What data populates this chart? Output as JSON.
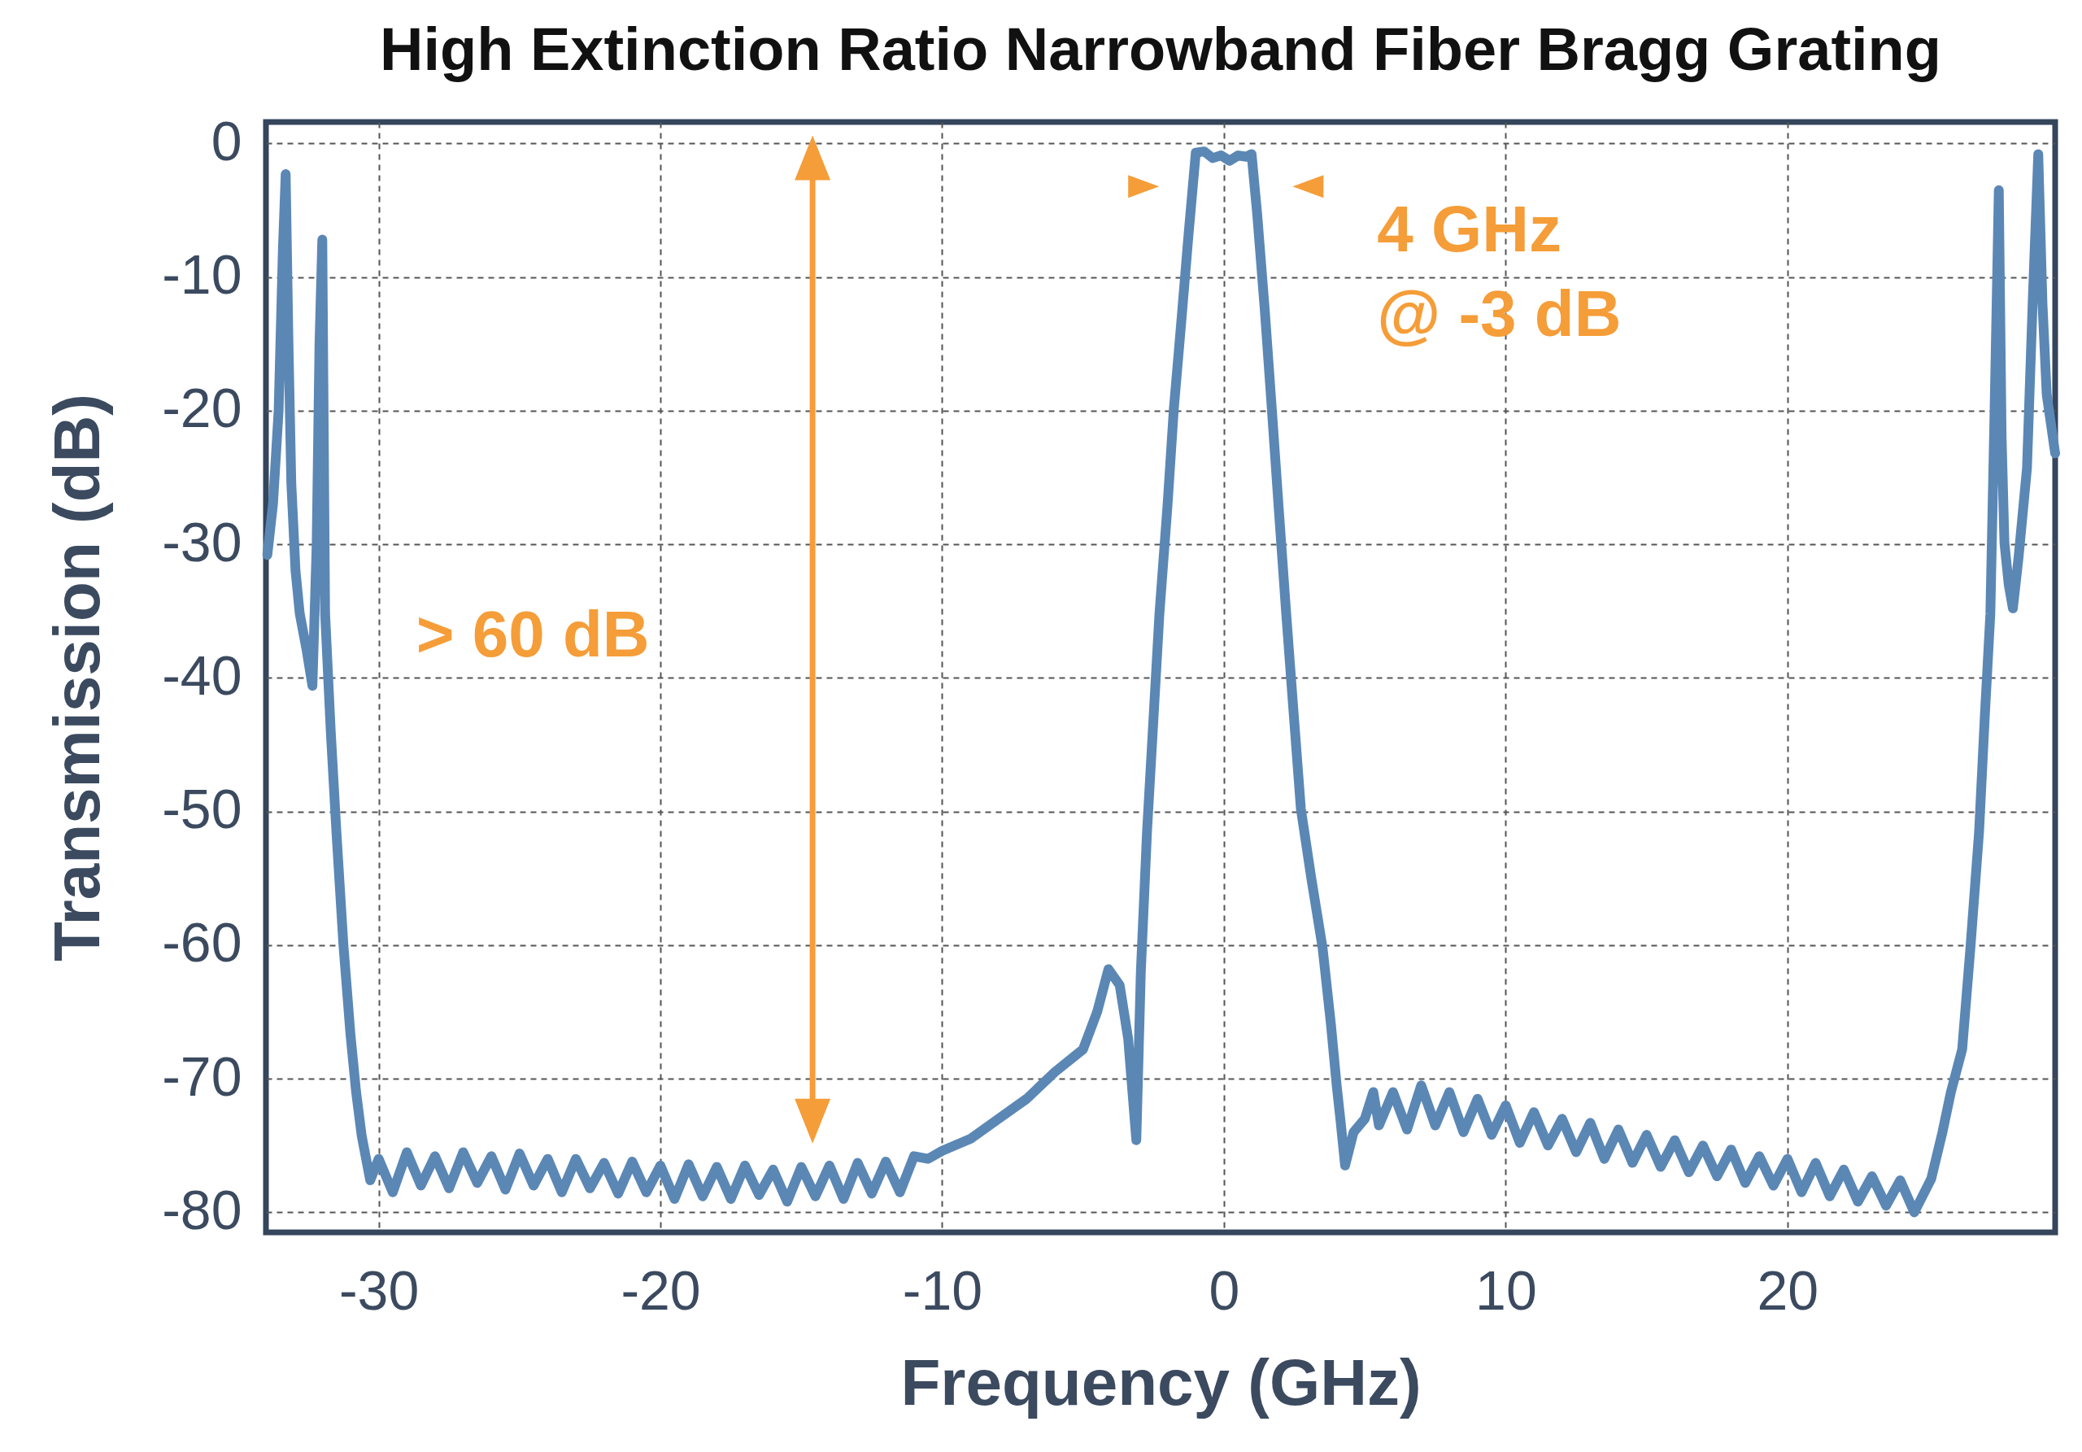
{
  "chart_data": {
    "type": "line",
    "title": "High Extinction Ratio Narrowband Fiber Bragg Grating",
    "xlabel": "Frequency (GHz)",
    "ylabel": "Transmission (dB)",
    "xlim": [
      -34,
      29.5
    ],
    "ylim": [
      -81.5,
      1.6
    ],
    "xticks": [
      -30,
      -20,
      -10,
      0,
      10,
      20
    ],
    "yticks": [
      0,
      -10,
      -20,
      -30,
      -40,
      -50,
      -60,
      -70,
      -80
    ],
    "grid": true,
    "legend": false,
    "marker": "none",
    "line_style": "solid",
    "annotations": [
      "> 60 dB",
      "4 GHz\n@ -3 dB"
    ],
    "series": [
      {
        "color": "#5b87b5",
        "x": [
          -33.95,
          -33.75,
          -33.55,
          -33.4,
          -33.3,
          -33.2,
          -33.1,
          -32.95,
          -32.8,
          -32.55,
          -32.35,
          -32.2,
          -32.1,
          -32.0,
          -31.9,
          -31.7,
          -31.5,
          -31.25,
          -31.0,
          -30.8,
          -30.6,
          -30.3,
          -30,
          -29.5,
          -29,
          -28.5,
          -28,
          -27.5,
          -27,
          -26.5,
          -26,
          -25.5,
          -25,
          -24.5,
          -24,
          -23.5,
          -23,
          -22.5,
          -22,
          -21.5,
          -21,
          -20.5,
          -20,
          -19.5,
          -19,
          -18.5,
          -18,
          -17.5,
          -17,
          -16.5,
          -16,
          -15.5,
          -15,
          -14.5,
          -14,
          -13.5,
          -13,
          -12.5,
          -12,
          -11.5,
          -11,
          -10.5,
          -10,
          -9,
          -8,
          -7,
          -6,
          -5,
          -4.5,
          -4.1,
          -3.7,
          -3.4,
          -3.11,
          -2.95,
          -2.73,
          -2.5,
          -2.29,
          -2.0,
          -1.78,
          -1.5,
          -1.26,
          -1.0,
          -0.7,
          -0.4,
          -0.1,
          0.2,
          0.5,
          0.8,
          0.98,
          1.18,
          1.45,
          1.7,
          1.95,
          2.21,
          2.45,
          2.73,
          3.1,
          3.5,
          3.8,
          4.0,
          4.14,
          4.3,
          4.6,
          5.0,
          5.3,
          5.5,
          6,
          6.5,
          7,
          7.5,
          8,
          8.5,
          9,
          9.5,
          10,
          10.5,
          11,
          11.5,
          12,
          12.5,
          13,
          13.5,
          14,
          14.5,
          15,
          15.5,
          16,
          16.5,
          17,
          17.5,
          18,
          18.5,
          19,
          19.5,
          20,
          20.5,
          21,
          21.5,
          22,
          22.5,
          23,
          23.5,
          24,
          24.5,
          25.1,
          25.5,
          25.8,
          26.2,
          26.5,
          26.8,
          27.0,
          27.2,
          27.35,
          27.5,
          27.6,
          27.7,
          27.85,
          28.0,
          28.2,
          28.5,
          28.7,
          28.9,
          29.05,
          29.2,
          29.35,
          29.5
        ],
        "values": [
          -30.8,
          -27,
          -20,
          -8,
          -2.3,
          -15,
          -25.4,
          -32,
          -35.2,
          -38,
          -40.6,
          -30,
          -15,
          -7.2,
          -35.2,
          -44,
          -51.5,
          -60,
          -66.7,
          -71,
          -74.3,
          -77.6,
          -76,
          -78.5,
          -75.5,
          -78,
          -75.8,
          -78.2,
          -75.5,
          -77.8,
          -75.8,
          -78.3,
          -75.6,
          -78,
          -76,
          -78.5,
          -76,
          -78.2,
          -76.3,
          -78.6,
          -76.2,
          -78.5,
          -76.5,
          -79,
          -76.4,
          -78.8,
          -76.6,
          -79,
          -76.5,
          -78.7,
          -76.8,
          -79.2,
          -76.6,
          -78.8,
          -76.5,
          -79,
          -76.3,
          -78.6,
          -76.2,
          -78.5,
          -75.8,
          -76,
          -75.4,
          -74.5,
          -73,
          -71.5,
          -69.5,
          -67.8,
          -65,
          -61.8,
          -63,
          -67,
          -74.6,
          -62,
          -51.5,
          -43,
          -35.2,
          -27,
          -19.9,
          -13,
          -6.9,
          -0.7,
          -0.6,
          -1.1,
          -0.9,
          -1.3,
          -0.9,
          -1.0,
          -0.8,
          -5.3,
          -12.5,
          -19.9,
          -27.5,
          -35.2,
          -42,
          -49.8,
          -55,
          -60.2,
          -66,
          -70.5,
          -73.2,
          -76.5,
          -74,
          -73,
          -71,
          -73.5,
          -71,
          -73.8,
          -70.5,
          -73.5,
          -71,
          -74,
          -71.5,
          -74.2,
          -72,
          -74.8,
          -72.5,
          -75,
          -73,
          -75.5,
          -73.3,
          -76,
          -73.8,
          -76.3,
          -74.2,
          -76.6,
          -74.6,
          -77,
          -75,
          -77.3,
          -75.3,
          -77.8,
          -75.8,
          -78,
          -76,
          -78.5,
          -76.3,
          -78.8,
          -76.8,
          -79.2,
          -77.3,
          -79.5,
          -77.6,
          -80,
          -77.5,
          -74,
          -71,
          -67.8,
          -60,
          -51.5,
          -43,
          -35.2,
          -20,
          -3.5,
          -22,
          -29.9,
          -33,
          -34.8,
          -31,
          -24.3,
          -12,
          -0.8,
          -12,
          -18.8,
          -21,
          -23.2
        ]
      }
    ]
  }
}
